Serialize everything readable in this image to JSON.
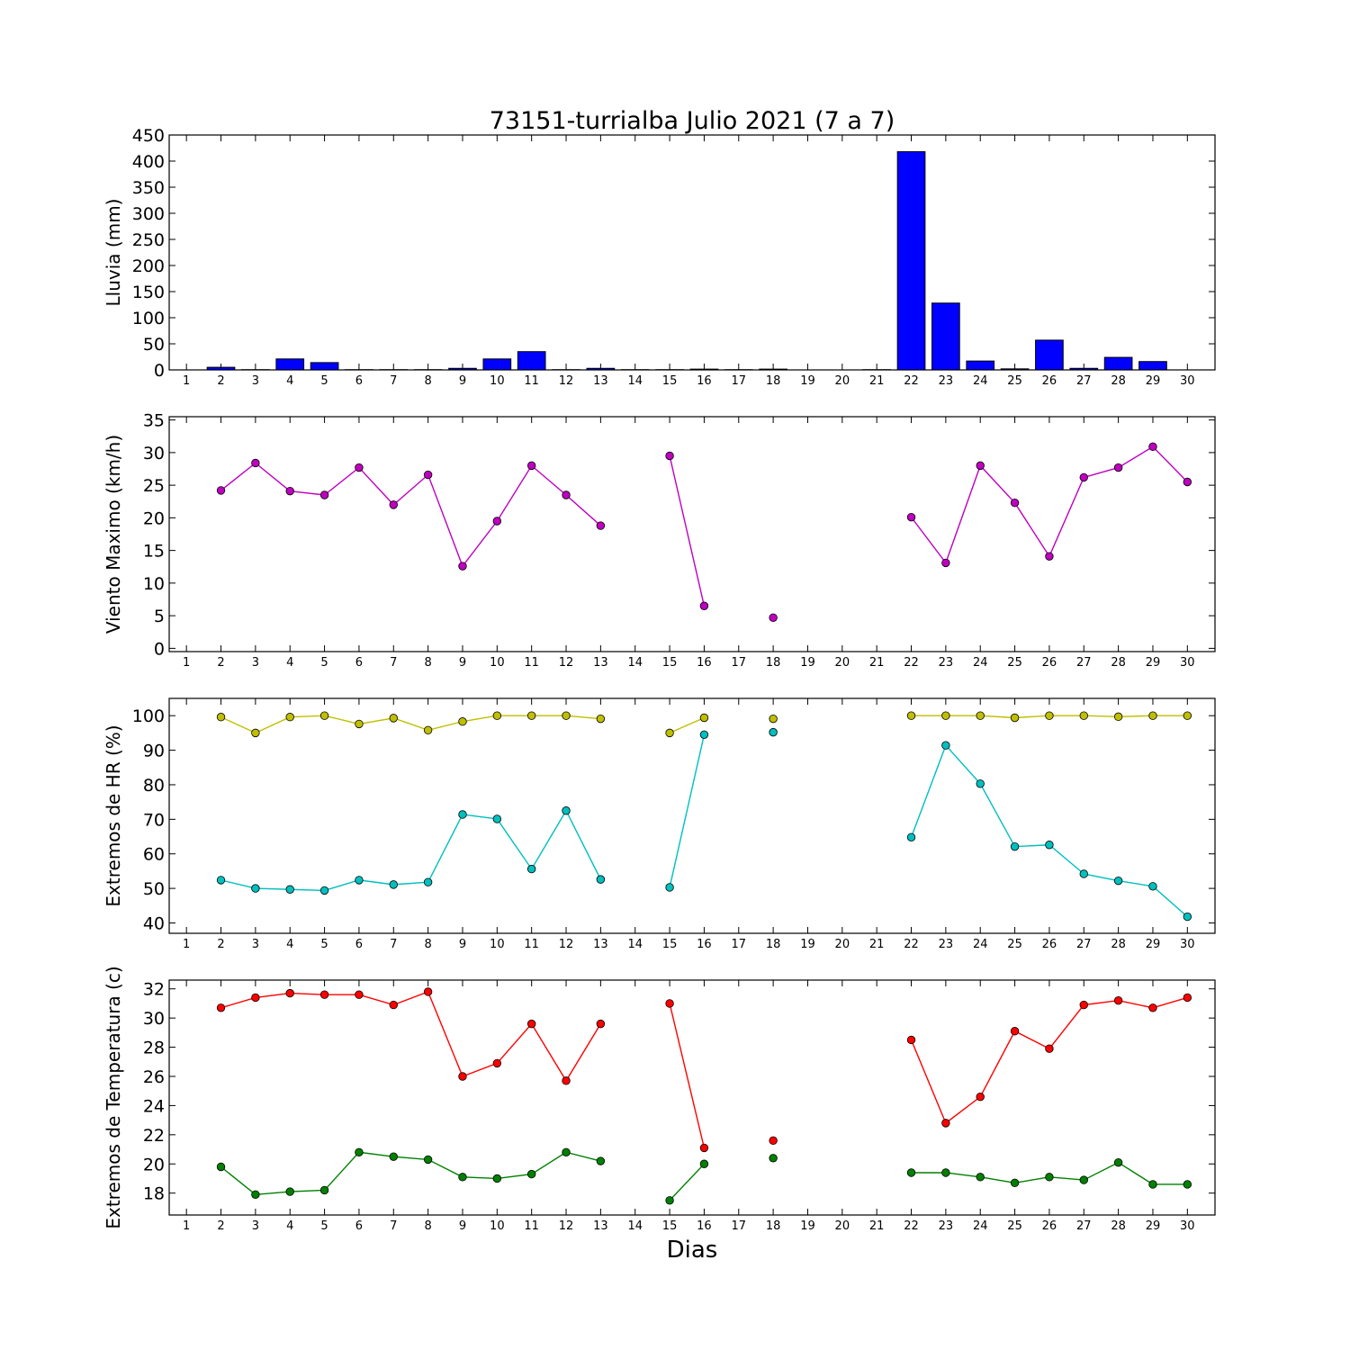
{
  "chart_data": {
    "title": "73151-turrialba Julio 2021  (7 a 7)",
    "xlabel": "Dias",
    "x": [
      1,
      2,
      3,
      4,
      5,
      6,
      7,
      8,
      9,
      10,
      11,
      12,
      13,
      14,
      15,
      16,
      17,
      18,
      19,
      20,
      21,
      22,
      23,
      24,
      25,
      26,
      27,
      28,
      29,
      30
    ],
    "panels": [
      {
        "type": "bar",
        "ylabel": "Lluvia (mm)",
        "ylim": [
          0,
          450
        ],
        "yticks": [
          0,
          50,
          100,
          150,
          200,
          250,
          300,
          350,
          400,
          450
        ],
        "series": [
          {
            "color": "#0000ff",
            "values": [
              0,
              5,
              0.5,
              21,
              14,
              0.5,
              0.5,
              0.5,
              3,
              21,
              35,
              0.5,
              3,
              0.5,
              0.5,
              1.5,
              0.5,
              1.5,
              0,
              0,
              0.5,
              418,
              128,
              17,
              2,
              57,
              3,
              24,
              16,
              0
            ]
          }
        ]
      },
      {
        "type": "line",
        "ylabel": "Viento Maximo (km/h)",
        "ylim": [
          -0.5,
          35.5
        ],
        "yticks": [
          0,
          5,
          10,
          15,
          20,
          25,
          30,
          35
        ],
        "series": [
          {
            "color": "#bf00bf",
            "values": [
              null,
              24.2,
              28.4,
              24.1,
              23.5,
              27.7,
              22,
              26.6,
              12.6,
              19.5,
              28,
              23.5,
              18.8,
              null,
              29.5,
              6.5,
              null,
              4.7,
              null,
              null,
              null,
              20.1,
              13.1,
              28,
              22.3,
              14.1,
              26.2,
              27.7,
              30.9,
              25.5
            ]
          }
        ]
      },
      {
        "type": "line",
        "ylabel": "Extremos de HR (%)",
        "ylim": [
          37,
          105
        ],
        "yticks": [
          40,
          50,
          60,
          70,
          80,
          90,
          100
        ],
        "series": [
          {
            "color": "#bfbf00",
            "values": [
              null,
              99.6,
              95,
              99.6,
              100,
              97.6,
              99.3,
              95.8,
              98.3,
              100,
              100,
              100,
              99.1,
              null,
              95,
              99.4,
              null,
              99.1,
              null,
              null,
              null,
              100,
              100,
              100,
              99.4,
              100,
              100,
              99.7,
              100,
              100
            ]
          },
          {
            "color": "#00bfbf",
            "values": [
              null,
              52.4,
              50,
              49.7,
              49.4,
              52.4,
              51.1,
              51.8,
              71.4,
              70.1,
              55.6,
              72.5,
              52.6,
              null,
              50.3,
              94.5,
              null,
              95.2,
              null,
              null,
              null,
              64.8,
              91.4,
              80.3,
              62.1,
              62.6,
              54.2,
              52.2,
              50.6,
              41.8
            ]
          }
        ]
      },
      {
        "type": "line",
        "ylabel": "Extremos de Temperatura (c)",
        "ylim": [
          16.5,
          32.6
        ],
        "yticks": [
          18,
          20,
          22,
          24,
          26,
          28,
          30,
          32
        ],
        "series": [
          {
            "color": "#ff0000",
            "values": [
              null,
              30.7,
              31.4,
              31.7,
              31.6,
              31.6,
              30.9,
              31.8,
              26,
              26.9,
              29.6,
              25.7,
              29.6,
              null,
              31,
              21.1,
              null,
              21.6,
              null,
              null,
              null,
              28.5,
              22.8,
              24.6,
              29.1,
              27.9,
              30.9,
              31.2,
              30.7,
              31.4
            ]
          },
          {
            "color": "#008000",
            "values": [
              null,
              19.8,
              17.9,
              18.1,
              18.2,
              20.8,
              20.5,
              20.3,
              19.1,
              19,
              19.3,
              20.8,
              20.2,
              null,
              17.5,
              20,
              null,
              20.4,
              null,
              null,
              null,
              19.4,
              19.4,
              19.1,
              18.7,
              19.1,
              18.9,
              20.1,
              18.6,
              18.6
            ]
          }
        ]
      }
    ]
  }
}
